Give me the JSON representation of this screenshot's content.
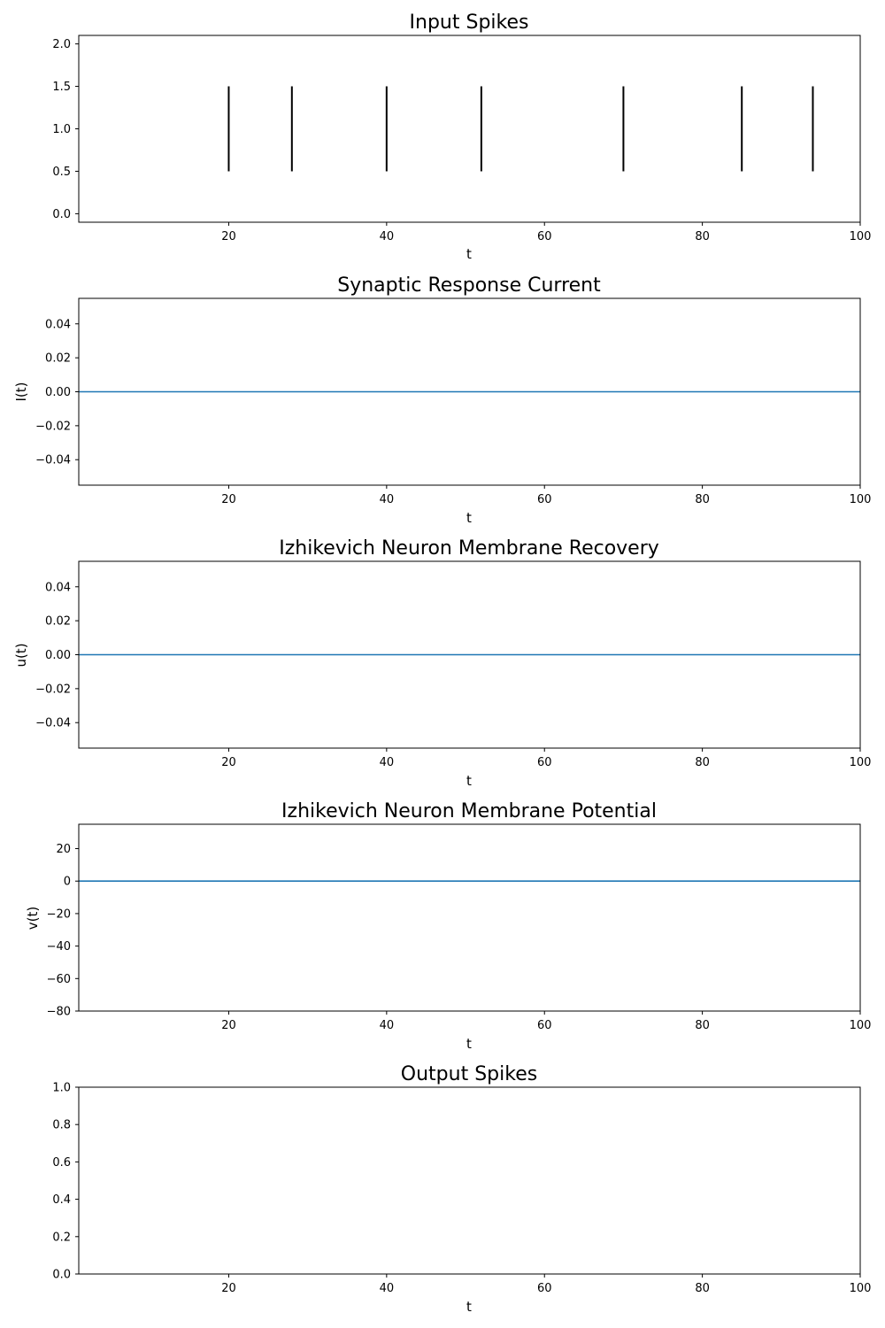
{
  "chart_data": [
    {
      "type": "event",
      "title": "Input Spikes",
      "xlabel": "t",
      "ylabel": "",
      "xlim": [
        1,
        100
      ],
      "ylim": [
        -0.1,
        2.1
      ],
      "xticks": [
        "20",
        "40",
        "60",
        "80",
        "100"
      ],
      "xtick_values": [
        20,
        40,
        60,
        80,
        100
      ],
      "yticks": [
        "0.0",
        "0.5",
        "1.0",
        "1.5",
        "2.0"
      ],
      "ytick_values": [
        0.0,
        0.5,
        1.0,
        1.5,
        2.0
      ],
      "events": [
        20,
        28,
        40,
        52,
        70,
        85,
        94
      ],
      "line_offset": 1.0,
      "line_length": 1.0,
      "color": "#000000"
    },
    {
      "type": "line",
      "title": "Synaptic Response Current",
      "xlabel": "t",
      "ylabel": "I(t)",
      "xlim": [
        1,
        100
      ],
      "ylim": [
        -0.055,
        0.055
      ],
      "xticks": [
        "20",
        "40",
        "60",
        "80",
        "100"
      ],
      "xtick_values": [
        20,
        40,
        60,
        80,
        100
      ],
      "yticks": [
        "−0.04",
        "−0.02",
        "0.00",
        "0.02",
        "0.04"
      ],
      "ytick_values": [
        -0.04,
        -0.02,
        0.0,
        0.02,
        0.04
      ],
      "series": [
        {
          "name": "I(t)",
          "x": [
            1,
            100
          ],
          "y": [
            0,
            0
          ]
        }
      ],
      "color": "#1f77b4"
    },
    {
      "type": "line",
      "title": "Izhikevich Neuron Membrane Recovery",
      "xlabel": "t",
      "ylabel": "u(t)",
      "xlim": [
        1,
        100
      ],
      "ylim": [
        -0.055,
        0.055
      ],
      "xticks": [
        "20",
        "40",
        "60",
        "80",
        "100"
      ],
      "xtick_values": [
        20,
        40,
        60,
        80,
        100
      ],
      "yticks": [
        "−0.04",
        "−0.02",
        "0.00",
        "0.02",
        "0.04"
      ],
      "ytick_values": [
        -0.04,
        -0.02,
        0.0,
        0.02,
        0.04
      ],
      "series": [
        {
          "name": "u(t)",
          "x": [
            1,
            100
          ],
          "y": [
            0,
            0
          ]
        }
      ],
      "color": "#1f77b4"
    },
    {
      "type": "line",
      "title": "Izhikevich Neuron Membrane Potential",
      "xlabel": "t",
      "ylabel": "v(t)",
      "xlim": [
        1,
        100
      ],
      "ylim": [
        -80,
        35
      ],
      "xticks": [
        "20",
        "40",
        "60",
        "80",
        "100"
      ],
      "xtick_values": [
        20,
        40,
        60,
        80,
        100
      ],
      "yticks": [
        "−80",
        "−60",
        "−40",
        "−20",
        "0",
        "20"
      ],
      "ytick_values": [
        -80,
        -60,
        -40,
        -20,
        0,
        20
      ],
      "series": [
        {
          "name": "v(t)",
          "x": [
            1,
            100
          ],
          "y": [
            0,
            0
          ]
        }
      ],
      "color": "#1f77b4"
    },
    {
      "type": "event",
      "title": "Output Spikes",
      "xlabel": "t",
      "ylabel": "",
      "xlim": [
        1,
        100
      ],
      "ylim": [
        0,
        1
      ],
      "xticks": [
        "20",
        "40",
        "60",
        "80",
        "100"
      ],
      "xtick_values": [
        20,
        40,
        60,
        80,
        100
      ],
      "yticks": [
        "0.0",
        "0.2",
        "0.4",
        "0.6",
        "0.8",
        "1.0"
      ],
      "ytick_values": [
        0.0,
        0.2,
        0.4,
        0.6,
        0.8,
        1.0
      ],
      "events": [],
      "color": "#000000"
    }
  ]
}
